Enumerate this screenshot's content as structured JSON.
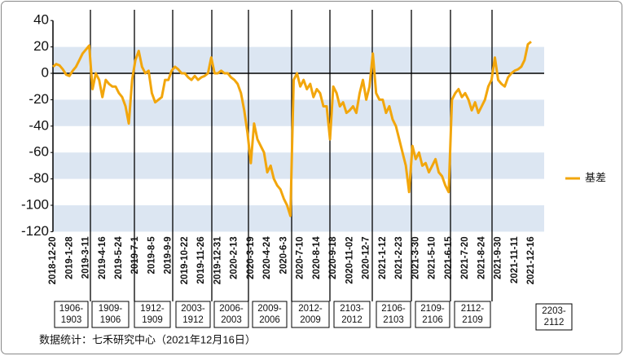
{
  "chart_data": {
    "type": "line",
    "categories": [
      "2018-12-20",
      null,
      null,
      null,
      null,
      "2019-1-28",
      null,
      null,
      null,
      null,
      "2019-3-11",
      null,
      null,
      null,
      null,
      "2019-4-16",
      null,
      null,
      null,
      null,
      "2019-5-24",
      null,
      null,
      null,
      null,
      "2019-7-1",
      null,
      null,
      null,
      null,
      "2019-8-5",
      null,
      null,
      null,
      null,
      "2019-9-9",
      null,
      null,
      null,
      null,
      "2019-10-22",
      null,
      null,
      null,
      null,
      "2019-11-26",
      null,
      null,
      null,
      null,
      "2019-12-31",
      null,
      null,
      null,
      null,
      "2020-2-13",
      null,
      null,
      null,
      null,
      "2020-3-19",
      null,
      null,
      null,
      null,
      "2020-4-24",
      null,
      null,
      null,
      null,
      "2020-6-3",
      null,
      null,
      null,
      null,
      "2020-7-10",
      null,
      null,
      null,
      null,
      "2020-8-14",
      null,
      null,
      null,
      null,
      "2020-9-18",
      null,
      null,
      null,
      null,
      "2020-11-02",
      null,
      null,
      null,
      null,
      "2020-12-7",
      null,
      null,
      null,
      null,
      "2021-1-12",
      null,
      null,
      null,
      null,
      "2021-2-23",
      null,
      null,
      null,
      null,
      "2021-3-30",
      null,
      null,
      null,
      null,
      "2021-5-10",
      null,
      null,
      null,
      null,
      "2021-6-15",
      null,
      null,
      null,
      null,
      "2021-7-20",
      null,
      null,
      null,
      null,
      "2021-8-24",
      null,
      null,
      null,
      null,
      "2021-9-30",
      null,
      null,
      null,
      null,
      "2021-11-11",
      null,
      null,
      null,
      null,
      "2021-12-16"
    ],
    "series": [
      {
        "name": "基差",
        "color": "#f2a60c",
        "values": [
          5,
          7,
          6,
          3,
          -1,
          -2,
          2,
          5,
          10,
          15,
          18,
          21,
          -12,
          0,
          -5,
          -18,
          -5,
          -8,
          -10,
          -10,
          -15,
          -18,
          -25,
          -38,
          -5,
          10,
          17,
          5,
          0,
          2,
          -15,
          -22,
          -20,
          -18,
          -5,
          -5,
          2,
          5,
          3,
          0,
          0,
          -3,
          -5,
          -2,
          -5,
          -3,
          -2,
          0,
          12,
          0,
          0,
          2,
          0,
          0,
          -3,
          -5,
          -8,
          -15,
          -28,
          -45,
          -68,
          -38,
          -50,
          -55,
          -60,
          -75,
          -70,
          -80,
          -85,
          -88,
          -95,
          -100,
          -108,
          -5,
          0,
          -10,
          -5,
          -12,
          -8,
          -18,
          -12,
          -15,
          -25,
          -25,
          -50,
          -10,
          -15,
          -25,
          -22,
          -30,
          -28,
          -25,
          -30,
          -15,
          -5,
          -20,
          -10,
          15,
          -15,
          -20,
          -20,
          -30,
          -25,
          -35,
          -40,
          -50,
          -60,
          -70,
          -90,
          -55,
          -65,
          -60,
          -70,
          -68,
          -75,
          -70,
          -65,
          -75,
          -78,
          -85,
          -90,
          -20,
          -15,
          -12,
          -18,
          -15,
          -20,
          -28,
          -22,
          -30,
          -25,
          -20,
          -10,
          -5,
          12,
          -5,
          -8,
          -10,
          -3,
          0,
          2,
          3,
          5,
          10,
          22,
          24
        ]
      }
    ],
    "ylim": [
      -120,
      40
    ],
    "yticks": [
      40,
      20,
      0,
      -20,
      -40,
      -60,
      -80,
      -100,
      -120
    ],
    "grid": "bands",
    "legend": "right",
    "contracts": [
      [
        "1906-",
        "1903"
      ],
      [
        "1909-",
        "1906"
      ],
      [
        "1912-",
        "1909"
      ],
      [
        "2003-",
        "1912"
      ],
      [
        "2006-",
        "2003"
      ],
      [
        "2009-",
        "2006"
      ],
      [
        "2012-",
        "2009"
      ],
      [
        "2103-",
        "2012"
      ],
      [
        "2106-",
        "2103"
      ],
      [
        "2109-",
        "2106"
      ],
      [
        "2112-",
        "2109"
      ],
      [
        "2203-",
        "2112"
      ]
    ],
    "source": "数据统计：七禾研究中心（2021年12月16日）"
  }
}
